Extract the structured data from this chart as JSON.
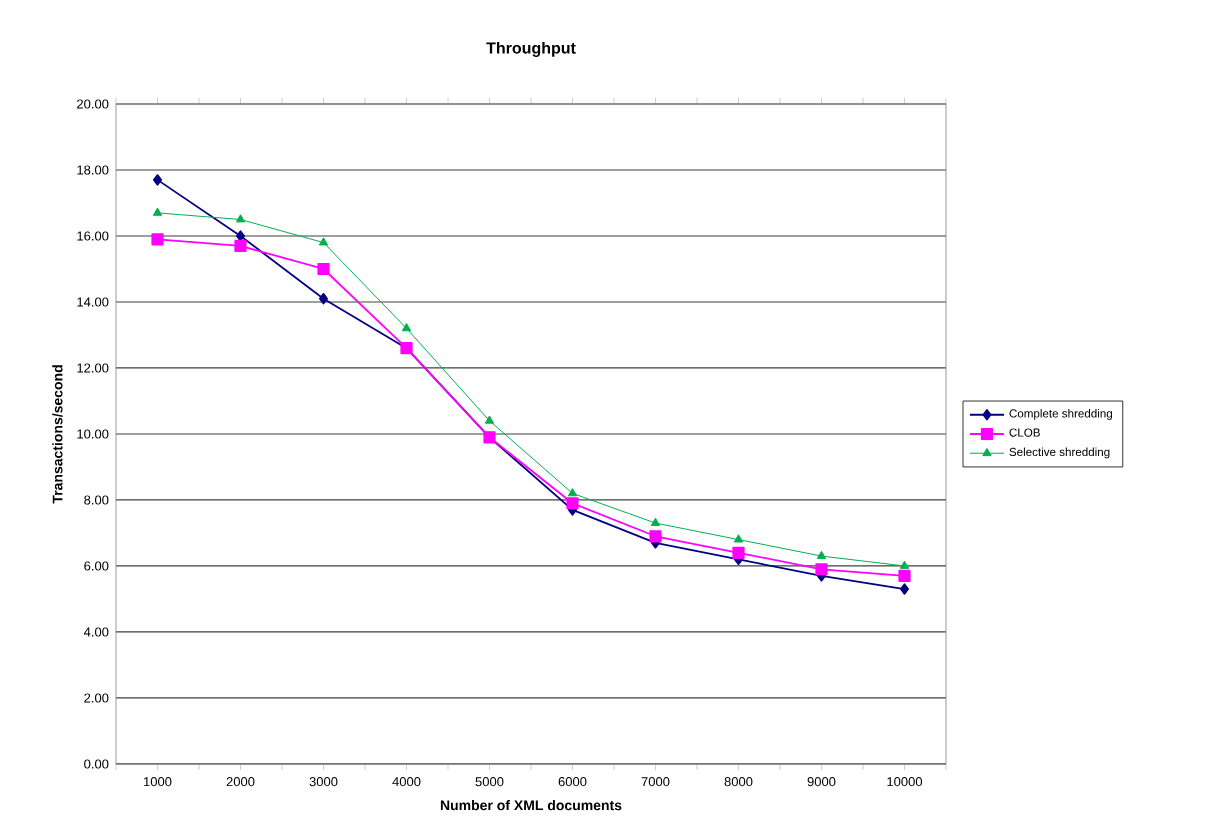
{
  "chart_data": {
    "type": "line",
    "title": "Throughput",
    "xlabel": "Number of XML documents",
    "ylabel": "Transactions/second",
    "categories": [
      "1000",
      "2000",
      "3000",
      "4000",
      "5000",
      "6000",
      "7000",
      "8000",
      "9000",
      "10000"
    ],
    "ylim": [
      0,
      20
    ],
    "yticks": [
      {
        "value": 0,
        "label": "0.00"
      },
      {
        "value": 2,
        "label": "2.00"
      },
      {
        "value": 4,
        "label": "4.00"
      },
      {
        "value": 6,
        "label": "6.00"
      },
      {
        "value": 8,
        "label": "8.00"
      },
      {
        "value": 10,
        "label": "10.00"
      },
      {
        "value": 12,
        "label": "12.00"
      },
      {
        "value": 14,
        "label": "14.00"
      },
      {
        "value": 16,
        "label": "16.00"
      },
      {
        "value": 18,
        "label": "18.00"
      },
      {
        "value": 20,
        "label": "20.00"
      }
    ],
    "grid": "y",
    "legend": "right",
    "line_style": "solid",
    "series": [
      {
        "name": "Complete shredding",
        "color": "#000080",
        "marker": "diamond",
        "values": [
          17.7,
          16.0,
          14.1,
          12.6,
          9.9,
          7.7,
          6.7,
          6.2,
          5.7,
          5.3
        ]
      },
      {
        "name": "CLOB",
        "color": "#ff00ff",
        "marker": "square",
        "values": [
          15.9,
          15.7,
          15.0,
          12.6,
          9.9,
          7.9,
          6.9,
          6.4,
          5.9,
          5.7
        ]
      },
      {
        "name": "Selective shredding",
        "color": "#00b050",
        "marker": "triangle",
        "values": [
          16.7,
          16.5,
          15.8,
          13.2,
          10.4,
          8.2,
          7.3,
          6.8,
          6.3,
          6.0
        ]
      }
    ]
  }
}
